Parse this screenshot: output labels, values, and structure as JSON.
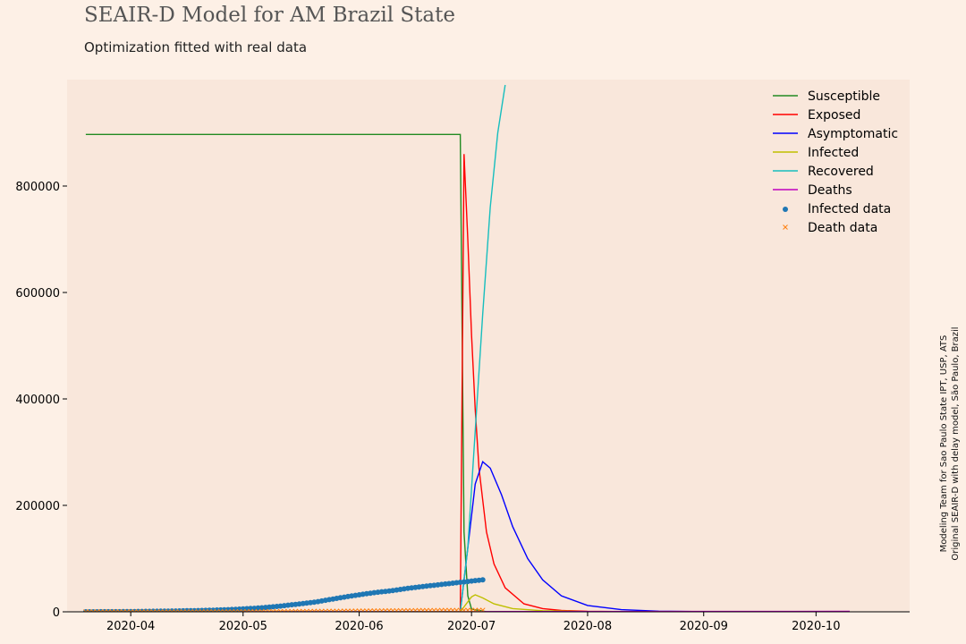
{
  "title": "SEAIR-D Model for AM Brazil State",
  "subtitle": "Optimization fitted with real data",
  "credits": [
    "Modeling Team for Sao Paulo State IPT, USP, ATS",
    "Original SEAIR-D with delay model, São Paulo, Brazil"
  ],
  "colors": {
    "background": "#fdf0e6",
    "plot_background": "#f9e7db",
    "susceptible": "#228b22",
    "exposed": "#ff0000",
    "asymptomatic": "#0000ff",
    "infected": "#bfbf00",
    "recovered": "#17bebe",
    "deaths": "#bf00bf",
    "infected_data": "#1f77b4",
    "death_data": "#ff7f0e"
  },
  "chart_data": {
    "type": "line",
    "title": "SEAIR-D Model for AM Brazil State",
    "subtitle": "Optimization fitted with real data",
    "xlabel": "",
    "ylabel": "",
    "x_axis": "date",
    "xlim": [
      "2020-03-15",
      "2020-10-26"
    ],
    "ylim": [
      0,
      1000000
    ],
    "x_ticks": [
      "2020-04",
      "2020-05",
      "2020-06",
      "2020-07",
      "2020-08",
      "2020-09",
      "2020-10"
    ],
    "y_ticks": [
      0,
      200000,
      400000,
      600000,
      800000
    ],
    "grid": false,
    "legend": "top-right",
    "legend_entries": [
      "Susceptible",
      "Exposed",
      "Asymptomatic",
      "Infected",
      "Recovered",
      "Deaths",
      "Infected data",
      "Death data"
    ],
    "series": [
      {
        "name": "Susceptible",
        "style": "line",
        "x": [
          "2020-03-20",
          "2020-06-28",
          "2020-06-29",
          "2020-06-30",
          "2020-07-01",
          "2020-07-05",
          "2020-10-10"
        ],
        "y": [
          897000,
          897000,
          150000,
          30000,
          5000,
          0,
          0
        ]
      },
      {
        "name": "Exposed",
        "style": "line",
        "x": [
          "2020-03-20",
          "2020-06-28",
          "2020-06-29",
          "2020-06-30",
          "2020-07-01",
          "2020-07-02",
          "2020-07-03",
          "2020-07-05",
          "2020-07-07",
          "2020-07-10",
          "2020-07-15",
          "2020-07-20",
          "2020-07-25",
          "2020-08-01",
          "2020-08-15",
          "2020-10-10"
        ],
        "y": [
          0,
          0,
          860000,
          700000,
          520000,
          380000,
          270000,
          150000,
          90000,
          45000,
          15000,
          6000,
          2500,
          800,
          100,
          0
        ]
      },
      {
        "name": "Asymptomatic",
        "style": "line",
        "x": [
          "2020-03-20",
          "2020-06-28",
          "2020-06-30",
          "2020-07-02",
          "2020-07-04",
          "2020-07-06",
          "2020-07-09",
          "2020-07-12",
          "2020-07-16",
          "2020-07-20",
          "2020-07-25",
          "2020-08-01",
          "2020-08-10",
          "2020-08-20",
          "2020-09-01",
          "2020-10-10"
        ],
        "y": [
          0,
          0,
          120000,
          240000,
          282000,
          270000,
          220000,
          160000,
          100000,
          60000,
          30000,
          12000,
          4000,
          1200,
          300,
          0
        ]
      },
      {
        "name": "Infected",
        "style": "line",
        "x": [
          "2020-03-20",
          "2020-06-28",
          "2020-07-01",
          "2020-07-02",
          "2020-07-04",
          "2020-07-07",
          "2020-07-12",
          "2020-07-20",
          "2020-08-01",
          "2020-10-10"
        ],
        "y": [
          0,
          0,
          28000,
          32000,
          26000,
          15000,
          6000,
          2000,
          400,
          0
        ]
      },
      {
        "name": "Recovered",
        "style": "line",
        "x": [
          "2020-03-20",
          "2020-06-28",
          "2020-06-30",
          "2020-07-02",
          "2020-07-04",
          "2020-07-06",
          "2020-07-08",
          "2020-07-10"
        ],
        "y": [
          0,
          0,
          120000,
          340000,
          560000,
          760000,
          900000,
          990000
        ]
      },
      {
        "name": "Deaths",
        "style": "line",
        "x": [
          "2020-03-20",
          "2020-06-28",
          "2020-07-10",
          "2020-10-10"
        ],
        "y": [
          0,
          0,
          500,
          800
        ]
      },
      {
        "name": "Infected data",
        "style": "scatter-dot",
        "x": [
          "2020-03-20",
          "2020-03-25",
          "2020-03-31",
          "2020-04-05",
          "2020-04-10",
          "2020-04-15",
          "2020-04-20",
          "2020-04-25",
          "2020-04-30",
          "2020-05-05",
          "2020-05-10",
          "2020-05-15",
          "2020-05-20",
          "2020-05-25",
          "2020-05-31",
          "2020-06-05",
          "2020-06-10",
          "2020-06-15",
          "2020-06-20",
          "2020-06-25",
          "2020-06-30",
          "2020-07-05"
        ],
        "y": [
          50,
          100,
          300,
          800,
          1200,
          1800,
          2500,
          3500,
          5000,
          7000,
          10000,
          14000,
          18000,
          24000,
          31000,
          36000,
          40000,
          45000,
          49000,
          53000,
          57000,
          61000
        ]
      },
      {
        "name": "Death data",
        "style": "scatter-x",
        "x": [
          "2020-03-20",
          "2020-03-31",
          "2020-04-10",
          "2020-04-20",
          "2020-04-30",
          "2020-05-10",
          "2020-05-20",
          "2020-05-31",
          "2020-06-10",
          "2020-06-20",
          "2020-06-30",
          "2020-07-05"
        ],
        "y": [
          0,
          10,
          50,
          150,
          300,
          600,
          1000,
          1600,
          2200,
          2600,
          2900,
          3100
        ]
      }
    ]
  }
}
